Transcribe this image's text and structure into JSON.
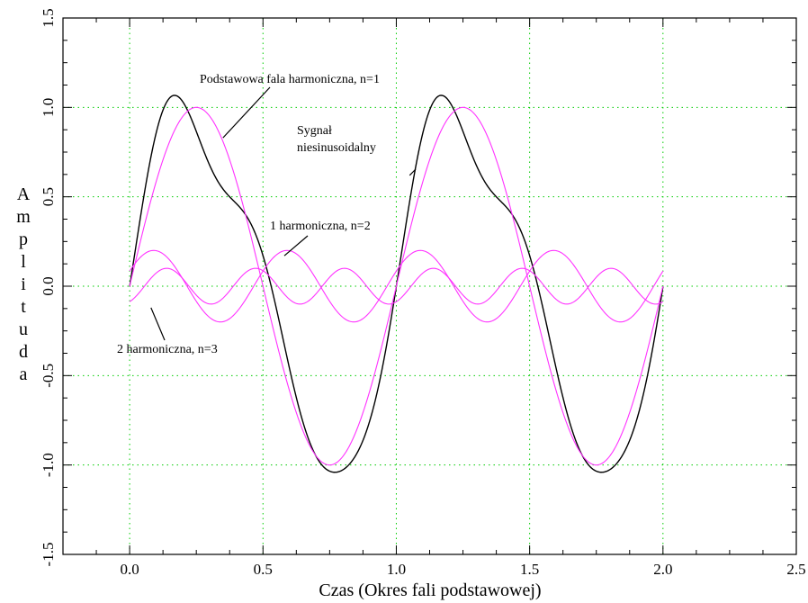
{
  "chart_data": {
    "type": "line",
    "title": "",
    "xlabel": "Czas (Okres fali podstawowej)",
    "ylabel": "Amplituda",
    "xlim": [
      -0.25,
      2.5
    ],
    "ylim": [
      -1.5,
      1.5
    ],
    "x_ticks": [
      0.0,
      0.5,
      1.0,
      1.5,
      2.0,
      2.5
    ],
    "x_tick_labels": [
      "0.0",
      "0.5",
      "1.0",
      "1.5",
      "2.0",
      "2.5"
    ],
    "y_ticks": [
      -1.5,
      -1.0,
      -0.5,
      0.0,
      0.5,
      1.0,
      1.5
    ],
    "y_tick_labels": [
      "-1.5",
      "-1.0",
      "-0.5",
      "0.0",
      "0.5",
      "1.0",
      "1.5"
    ],
    "grid": true,
    "legend": "none",
    "series": [
      {
        "color": "#000000",
        "x_range": [
          0,
          2
        ],
        "components": [
          {
            "amplitude": 1.0,
            "harmonic": 1,
            "phase_deg": 0
          },
          {
            "amplitude": 0.2,
            "harmonic": 2,
            "phase_deg": 25
          },
          {
            "amplitude": 0.1,
            "harmonic": 3,
            "phase_deg": -60
          }
        ]
      },
      {
        "color": "#ff33ff",
        "x_range": [
          0,
          2
        ],
        "amplitude": 1.0,
        "harmonic": 1,
        "phase_deg": 0
      },
      {
        "color": "#ff33ff",
        "x_range": [
          0,
          2
        ],
        "amplitude": 0.2,
        "harmonic": 2,
        "phase_deg": 25
      },
      {
        "color": "#ff33ff",
        "x_range": [
          0,
          2
        ],
        "amplitude": 0.1,
        "harmonic": 3,
        "phase_deg": -60
      }
    ],
    "annotations": [
      {
        "text": "Podstawowa fala harmoniczna, n=1",
        "target": [
          0.35,
          0.83
        ]
      },
      {
        "text": "Sygnał",
        "target": [
          1.05,
          0.62
        ]
      },
      {
        "text": "niesinusoidalny",
        "target": [
          1.05,
          0.62
        ]
      },
      {
        "text": "1 harmoniczna, n=2",
        "target": [
          0.58,
          0.17
        ]
      },
      {
        "text": "2 harmoniczna, n=3",
        "target": [
          0.08,
          -0.12
        ]
      }
    ]
  },
  "colors": {
    "grid": "#00cc00",
    "frame": "#000000",
    "harmonic": "#ff33ff",
    "signal": "#000000"
  }
}
